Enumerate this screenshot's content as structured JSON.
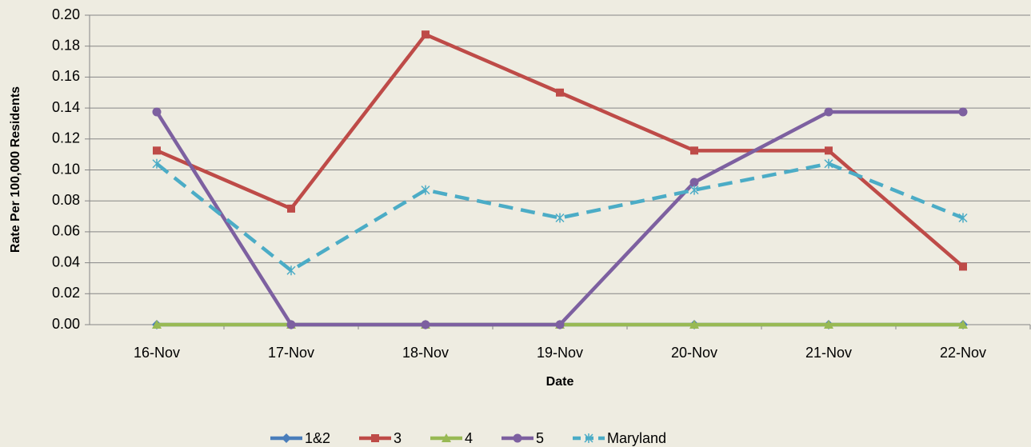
{
  "chart_data": {
    "type": "line",
    "x_label": "Date",
    "y_label": "Rate Per 100,000 Residents",
    "categories": [
      "16-Nov",
      "17-Nov",
      "18-Nov",
      "19-Nov",
      "20-Nov",
      "21-Nov",
      "22-Nov"
    ],
    "series": [
      {
        "name": "1&2",
        "color": "#4a7ebb",
        "marker": "diamond",
        "dashed": false,
        "values": [
          0,
          0,
          0,
          0,
          0,
          0,
          0
        ]
      },
      {
        "name": "3",
        "color": "#be4b48",
        "marker": "square",
        "dashed": false,
        "values": [
          0.1125,
          0.075,
          0.1875,
          0.15,
          0.1125,
          0.1125,
          0.0375
        ]
      },
      {
        "name": "4",
        "color": "#98b954",
        "marker": "triangle",
        "dashed": false,
        "values": [
          0,
          0,
          0,
          0,
          0,
          0,
          0
        ]
      },
      {
        "name": "5",
        "color": "#7d60a0",
        "marker": "circle",
        "dashed": false,
        "values": [
          0.1375,
          0,
          0,
          0,
          0.092,
          0.1375,
          0.1375
        ]
      },
      {
        "name": "Maryland",
        "color": "#4bacc6",
        "marker": "star",
        "dashed": true,
        "values": [
          0.104,
          0.035,
          0.087,
          0.069,
          0.087,
          0.104,
          0.069
        ]
      }
    ],
    "ylim": [
      0,
      0.2
    ],
    "yticks": [
      {
        "value": 0,
        "label": "0.00"
      },
      {
        "value": 0.02,
        "label": "0.02"
      },
      {
        "value": 0.04,
        "label": "0.04"
      },
      {
        "value": 0.06,
        "label": "0.06"
      },
      {
        "value": 0.08,
        "label": "0.08"
      },
      {
        "value": 0.1,
        "label": "0.10"
      },
      {
        "value": 0.12,
        "label": "0.12"
      },
      {
        "value": 0.14,
        "label": "0.14"
      },
      {
        "value": 0.16,
        "label": "0.16"
      },
      {
        "value": 0.18,
        "label": "0.18"
      },
      {
        "value": 0.2,
        "label": "0.20"
      }
    ],
    "grid": true,
    "legend": "bottom"
  }
}
